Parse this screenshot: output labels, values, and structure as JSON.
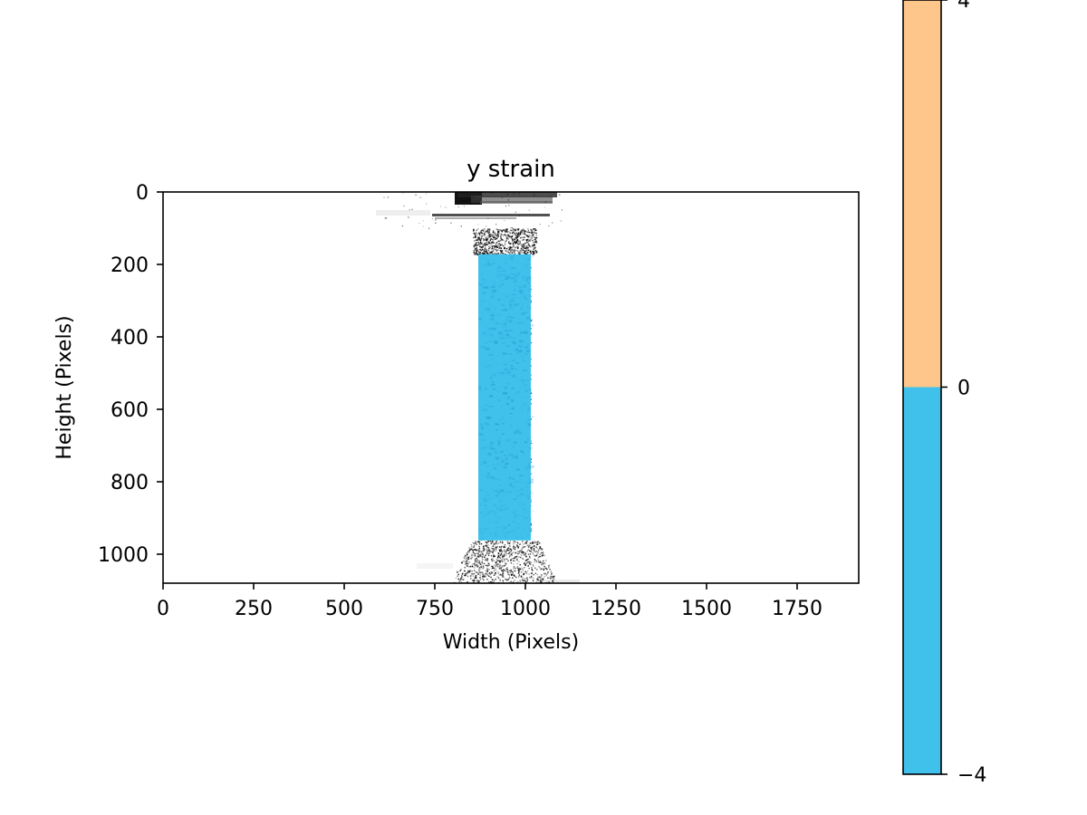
{
  "chart_data": {
    "type": "heatmap",
    "title": "y strain",
    "xlabel": "Width (Pixels)",
    "ylabel": "Height (Pixels)",
    "xlim": [
      0,
      1920
    ],
    "ylim": [
      1080,
      0
    ],
    "x_ticks": [
      0,
      250,
      500,
      750,
      1000,
      1250,
      1500,
      1750
    ],
    "y_ticks": [
      0,
      200,
      400,
      600,
      800,
      1000
    ],
    "x_tick_labels": [
      "0",
      "250",
      "500",
      "750",
      "1000",
      "1250",
      "1500",
      "1750"
    ],
    "y_tick_labels": [
      "0",
      "200",
      "400",
      "600",
      "800",
      "1000"
    ],
    "grid": false,
    "strain_region": {
      "x_range": [
        870,
        1015
      ],
      "y_range": [
        172,
        962
      ],
      "value_sign": "negative",
      "color": "#3fc1ec"
    },
    "colorbar": {
      "range": [
        -4,
        4
      ],
      "ticks": [
        -4,
        0,
        4
      ],
      "tick_labels": [
        "−4",
        "0",
        "4"
      ],
      "segments": [
        {
          "from": -4,
          "to": 0,
          "color": "#3fc1ec"
        },
        {
          "from": 0,
          "to": 4,
          "color": "#fec68b"
        }
      ]
    }
  }
}
